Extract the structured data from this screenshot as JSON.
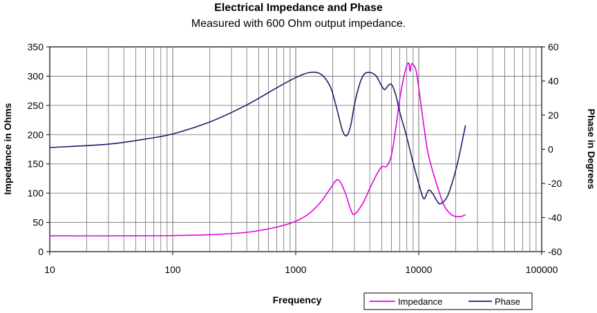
{
  "chart_data": {
    "type": "line",
    "title": "Electrical Impedance and Phase",
    "subtitle": "Measured with 600 Ohm output impedance.",
    "xlabel": "Frequency",
    "ylabel": "Impedance in Ohms",
    "y2label": "Phase in Degrees",
    "x_scale": "log",
    "xlim": [
      10,
      100000
    ],
    "ylim": [
      0,
      350
    ],
    "y2lim": [
      -60,
      60
    ],
    "x_ticks": [
      "10",
      "100",
      "1000",
      "10000",
      "100000"
    ],
    "y_ticks": [
      "0",
      "50",
      "100",
      "150",
      "200",
      "250",
      "300",
      "350"
    ],
    "y2_ticks": [
      "-60",
      "-40",
      "-20",
      "0",
      "20",
      "40",
      "60"
    ],
    "grid": true,
    "legend_position": "bottom-right",
    "series": [
      {
        "name": "Impedance",
        "axis": "left",
        "color": "#e000e0",
        "x": [
          10,
          50,
          100,
          200,
          400,
          700,
          1000,
          1300,
          1600,
          1900,
          2200,
          2500,
          2800,
          3000,
          3500,
          4000,
          4500,
          5000,
          5500,
          6000,
          6500,
          7000,
          7500,
          8000,
          8300,
          8500,
          8700,
          9000,
          9500,
          10000,
          11000,
          12000,
          14000,
          16000,
          18000,
          20000,
          22000,
          24000
        ],
        "y": [
          27,
          27,
          27.5,
          29,
          33,
          42,
          52,
          66,
          85,
          107,
          123,
          103,
          72,
          64,
          82,
          108,
          130,
          145,
          146,
          165,
          210,
          260,
          295,
          318,
          322,
          308,
          320,
          320,
          310,
          280,
          215,
          165,
          115,
          80,
          65,
          60,
          60,
          63
        ]
      },
      {
        "name": "Phase",
        "axis": "right",
        "color": "#1c1c66",
        "x": [
          10,
          30,
          60,
          100,
          200,
          400,
          700,
          1000,
          1300,
          1600,
          1900,
          2100,
          2400,
          2600,
          2800,
          3000,
          3300,
          3600,
          4000,
          4500,
          5000,
          5300,
          5600,
          6000,
          6500,
          7000,
          8000,
          9000,
          10000,
          11000,
          12000,
          13000,
          14000,
          15000,
          17000,
          19000,
          21000,
          24000
        ],
        "y": [
          1,
          3,
          6,
          9,
          16,
          26,
          36,
          42,
          45,
          44,
          37,
          27,
          11,
          8,
          14,
          26,
          38,
          44,
          45,
          43,
          37,
          35,
          37,
          38,
          32,
          22,
          7,
          -8,
          -20,
          -29,
          -24,
          -26,
          -30,
          -32,
          -28,
          -18,
          -6,
          14
        ]
      }
    ]
  },
  "legend": {
    "impedance": "Impedance",
    "phase": "Phase"
  }
}
